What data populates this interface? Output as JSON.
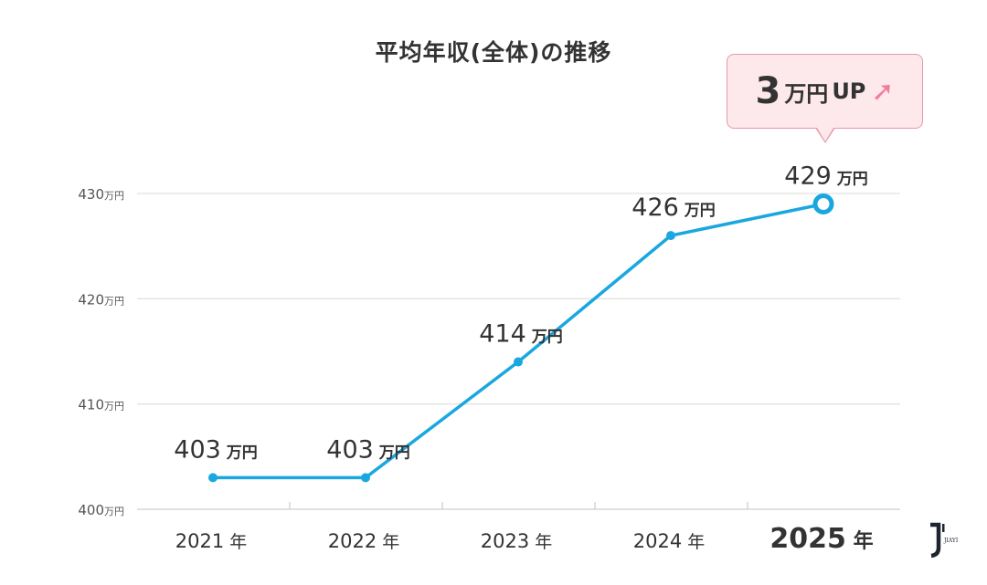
{
  "chart_data": {
    "type": "line",
    "title": "平均年収(全体)の推移",
    "categories": [
      "2021年",
      "2022年",
      "2023年",
      "2024年",
      "2025年"
    ],
    "x_labels": [
      {
        "num": "2021",
        "unit": "年"
      },
      {
        "num": "2022",
        "unit": "年"
      },
      {
        "num": "2023",
        "unit": "年"
      },
      {
        "num": "2024",
        "unit": "年"
      },
      {
        "num": "2025",
        "unit": "年"
      }
    ],
    "values": [
      403,
      403,
      414,
      426,
      429
    ],
    "value_unit": "万円",
    "ylim": [
      400,
      430
    ],
    "yticks": [
      400,
      410,
      420,
      430
    ],
    "ytick_unit": "万円",
    "grid": true,
    "line_color": "#1aa7e0",
    "highlight_index": 4
  },
  "callout": {
    "number": "3",
    "unit": "万円",
    "text": "UP",
    "arrow_icon": "arrow-up-right-icon",
    "arrow_color": "#f17f98",
    "background": "#fde8ec"
  },
  "logo": {
    "text": "JIAYI"
  }
}
